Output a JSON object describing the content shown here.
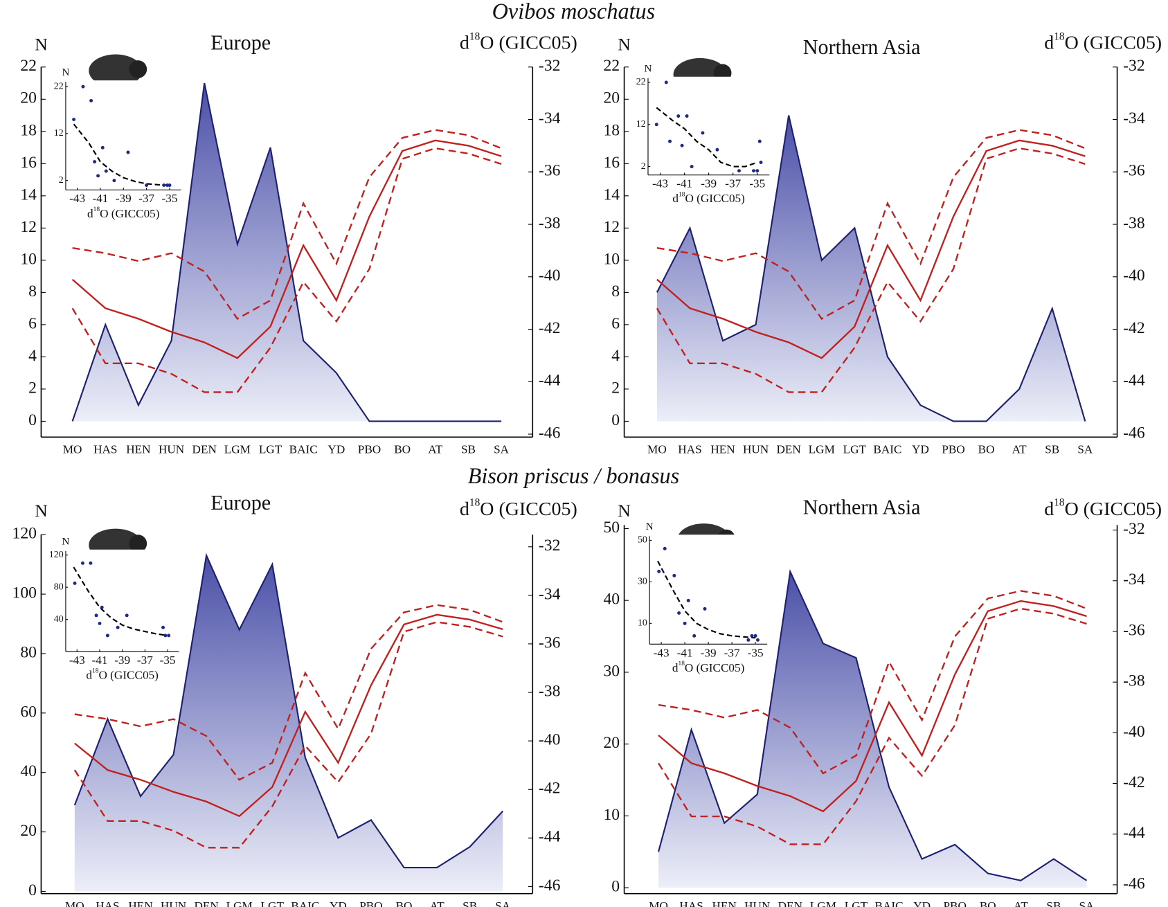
{
  "headings": [
    "Ovibos moschatus",
    "Bison priscus / bonasus"
  ],
  "chart_data": [
    {
      "type": "area-line",
      "title": "Europe",
      "y_label": "N",
      "y2_label": {
        "base": "d",
        "sup": "18",
        "rest": "O (GICC05)"
      },
      "categories": [
        "MO",
        "HAS",
        "HEN",
        "HUN",
        "DEN",
        "LGM",
        "LGT",
        "BAIC",
        "YD",
        "PBO",
        "BO",
        "AT",
        "SB",
        "SA"
      ],
      "ylim": [
        -0.8,
        22
      ],
      "yticks": [
        0,
        2,
        4,
        6,
        8,
        10,
        12,
        14,
        16,
        18,
        20,
        22
      ],
      "y2lim": [
        -46,
        -32
      ],
      "y2ticks": [
        -46,
        -44,
        -42,
        -40,
        -38,
        -36,
        -34,
        -32
      ],
      "series": [
        {
          "style": "area",
          "color": "#1e2070",
          "values": [
            0,
            6,
            1,
            5,
            21,
            11,
            17,
            5,
            3,
            0,
            0,
            0,
            0,
            0
          ]
        },
        {
          "style": "dashed",
          "axis": "y2",
          "color": "#c0201e",
          "values": [
            -38.9,
            -39.1,
            -39.4,
            -39.1,
            -39.8,
            -41.6,
            -40.9,
            -37.2,
            -39.5,
            -36.2,
            -34.7,
            -34.4,
            -34.6,
            -35.1
          ]
        },
        {
          "style": "solid",
          "axis": "y2",
          "color": "#c0201e",
          "values": [
            -40.1,
            -41.2,
            -41.6,
            -42.1,
            -42.5,
            -43.1,
            -41.9,
            -38.8,
            -40.9,
            -37.7,
            -35.2,
            -34.8,
            -35.0,
            -35.4
          ]
        },
        {
          "style": "dashed",
          "axis": "y2",
          "color": "#c0201e",
          "values": [
            -41.2,
            -43.3,
            -43.3,
            -43.7,
            -44.4,
            -44.4,
            -42.7,
            -40.2,
            -41.7,
            -39.7,
            -35.5,
            -35.1,
            -35.3,
            -35.7
          ]
        }
      ],
      "inset": {
        "type": "scatter",
        "y_label": "N",
        "x_label": {
          "base": "d",
          "sup": "18",
          "rest": "O (GICC05)"
        },
        "color": "#1e2a80",
        "xlim": [
          -44,
          -34
        ],
        "xticks": [
          -43,
          -41,
          -39,
          -37,
          -35
        ],
        "ylim": [
          0,
          23
        ],
        "yticks": [
          2,
          12,
          22
        ],
        "points": {
          "x": [
            -43.3,
            -42.5,
            -41.8,
            -41.5,
            -41.2,
            -40.8,
            -40.5,
            -39.8,
            -38.6,
            -37,
            -35.5,
            -35.2,
            -35
          ],
          "y": [
            15,
            22,
            19,
            6,
            3,
            9,
            4,
            2,
            8,
            1,
            1,
            1,
            1
          ]
        },
        "fit": {
          "color": "#000",
          "x": [
            -43.3,
            -42,
            -41,
            -40,
            -39,
            -38,
            -37,
            -36,
            -35
          ],
          "y": [
            14,
            10,
            6,
            4,
            2.6,
            1.8,
            1.3,
            1.1,
            1
          ]
        }
      }
    },
    {
      "type": "area-line",
      "title": "Northern Asia",
      "y_label": "N",
      "y2_label": {
        "base": "d",
        "sup": "18",
        "rest": "O (GICC05)"
      },
      "categories": [
        "MO",
        "HAS",
        "HEN",
        "HUN",
        "DEN",
        "LGM",
        "LGT",
        "BAIC",
        "YD",
        "PBO",
        "BO",
        "AT",
        "SB",
        "SA"
      ],
      "ylim": [
        -0.8,
        22
      ],
      "yticks": [
        0,
        2,
        4,
        6,
        8,
        10,
        12,
        14,
        16,
        18,
        20,
        22
      ],
      "y2lim": [
        -46,
        -32
      ],
      "y2ticks": [
        -46,
        -44,
        -42,
        -40,
        -38,
        -36,
        -34,
        -32
      ],
      "series": [
        {
          "style": "area",
          "color": "#1e2070",
          "values": [
            8,
            12,
            5,
            6,
            19,
            10,
            12,
            4,
            1,
            0,
            0,
            2,
            7,
            0
          ]
        },
        {
          "style": "dashed",
          "axis": "y2",
          "color": "#c0201e",
          "values": [
            -38.9,
            -39.1,
            -39.4,
            -39.1,
            -39.8,
            -41.6,
            -40.9,
            -37.2,
            -39.5,
            -36.2,
            -34.7,
            -34.4,
            -34.6,
            -35.1
          ]
        },
        {
          "style": "solid",
          "axis": "y2",
          "color": "#c0201e",
          "values": [
            -40.1,
            -41.2,
            -41.6,
            -42.1,
            -42.5,
            -43.1,
            -41.9,
            -38.8,
            -40.9,
            -37.7,
            -35.2,
            -34.8,
            -35.0,
            -35.4
          ]
        },
        {
          "style": "dashed",
          "axis": "y2",
          "color": "#c0201e",
          "values": [
            -41.2,
            -43.3,
            -43.3,
            -43.7,
            -44.4,
            -44.4,
            -42.7,
            -40.2,
            -41.7,
            -39.7,
            -35.5,
            -35.1,
            -35.3,
            -35.7
          ]
        }
      ],
      "inset": {
        "type": "scatter",
        "y_label": "N",
        "x_label": {
          "base": "d",
          "sup": "18",
          "rest": "O (GICC05)"
        },
        "color": "#1e2a80",
        "xlim": [
          -44,
          -34
        ],
        "xticks": [
          -43,
          -41,
          -39,
          -37,
          -35
        ],
        "ylim": [
          0,
          23
        ],
        "yticks": [
          2,
          12,
          22
        ],
        "points": {
          "x": [
            -43.3,
            -42.5,
            -42.2,
            -41.5,
            -41.2,
            -40.8,
            -40.4,
            -39.5,
            -38.3,
            -36.5,
            -35.3,
            -35,
            -34.8,
            -34.7
          ],
          "y": [
            12,
            22,
            8,
            14,
            7,
            14,
            2,
            10,
            6,
            1,
            1,
            1,
            8,
            3
          ]
        },
        "fit": {
          "color": "#000",
          "x": [
            -43.3,
            -42,
            -41,
            -40,
            -39,
            -38,
            -37,
            -36,
            -35
          ],
          "y": [
            16,
            13,
            11,
            8,
            6,
            3,
            2,
            2,
            3
          ]
        }
      }
    },
    {
      "type": "area-line",
      "title": "Europe",
      "y_label": "N",
      "y2_label": {
        "base": "d",
        "sup": "18",
        "rest": "O (GICC05)"
      },
      "categories": [
        "MO",
        "HAS",
        "HEN",
        "HUN",
        "DEN",
        "LGM",
        "LGT",
        "BAIC",
        "YD",
        "PBO",
        "BO",
        "AT",
        "SB",
        "SA"
      ],
      "ylim": [
        0,
        120
      ],
      "yticks": [
        0,
        20,
        40,
        60,
        80,
        100,
        120
      ],
      "y2lim": [
        -46.2,
        -31.5
      ],
      "y2ticks": [
        -46,
        -44,
        -42,
        -40,
        -38,
        -36,
        -34,
        -32
      ],
      "series": [
        {
          "style": "area",
          "color": "#1e2070",
          "values": [
            29,
            58,
            32,
            46,
            113,
            88,
            110,
            45,
            18,
            24,
            8,
            8,
            15,
            27
          ]
        },
        {
          "style": "dashed",
          "axis": "y2",
          "color": "#c0201e",
          "values": [
            -38.9,
            -39.1,
            -39.4,
            -39.1,
            -39.8,
            -41.6,
            -40.9,
            -37.2,
            -39.5,
            -36.2,
            -34.7,
            -34.4,
            -34.6,
            -35.1
          ]
        },
        {
          "style": "solid",
          "axis": "y2",
          "color": "#c0201e",
          "values": [
            -40.1,
            -41.2,
            -41.6,
            -42.1,
            -42.5,
            -43.1,
            -41.9,
            -38.8,
            -40.9,
            -37.7,
            -35.2,
            -34.8,
            -35.0,
            -35.4
          ]
        },
        {
          "style": "dashed",
          "axis": "y2",
          "color": "#c0201e",
          "values": [
            -41.2,
            -43.3,
            -43.3,
            -43.7,
            -44.4,
            -44.4,
            -42.7,
            -40.2,
            -41.7,
            -39.7,
            -35.5,
            -35.1,
            -35.3,
            -35.7
          ]
        }
      ],
      "inset": {
        "type": "scatter",
        "y_label": "N",
        "x_label": {
          "base": "d",
          "sup": "18",
          "rest": "O (GICC05)"
        },
        "color": "#1e2a80",
        "xlim": [
          -44,
          -34
        ],
        "xticks": [
          -43,
          -41,
          -39,
          -37,
          -35
        ],
        "ylim": [
          0,
          125
        ],
        "yticks": [
          40,
          80,
          120
        ],
        "points": {
          "x": [
            -43.2,
            -42.5,
            -41.8,
            -41.3,
            -41,
            -40.8,
            -40.3,
            -39.4,
            -38.6,
            -35.4,
            -35.2,
            -34.9
          ],
          "y": [
            85,
            110,
            110,
            45,
            35,
            55,
            20,
            30,
            45,
            30,
            20,
            20
          ]
        },
        "fit": {
          "color": "#000",
          "x": [
            -43.3,
            -42,
            -41,
            -40,
            -39,
            -38,
            -37,
            -36,
            -35
          ],
          "y": [
            105,
            75,
            55,
            42,
            33,
            28,
            25,
            22,
            20
          ]
        }
      }
    },
    {
      "type": "area-line",
      "title": "Northern Asia",
      "y_label": "N",
      "y2_label": {
        "base": "d",
        "sup": "18",
        "rest": "O (GICC05)"
      },
      "categories": [
        "MO",
        "HAS",
        "HEN",
        "HUN",
        "DEN",
        "LGM",
        "LGT",
        "BAIC",
        "YD",
        "PBO",
        "BO",
        "AT",
        "SB",
        "SA"
      ],
      "ylim": [
        -0.3,
        50.5
      ],
      "yticks": [
        0,
        10,
        20,
        30,
        40,
        50
      ],
      "y2lim": [
        -46.2,
        -31.8
      ],
      "y2ticks": [
        -46,
        -44,
        -42,
        -40,
        -38,
        -36,
        -34,
        -32
      ],
      "series": [
        {
          "style": "area",
          "color": "#1e2070",
          "values": [
            5,
            22,
            9,
            13,
            44,
            34,
            32,
            14,
            4,
            6,
            2,
            1,
            4,
            1
          ]
        },
        {
          "style": "dashed",
          "axis": "y2",
          "color": "#c0201e",
          "values": [
            -38.9,
            -39.1,
            -39.4,
            -39.1,
            -39.8,
            -41.6,
            -40.9,
            -37.2,
            -39.5,
            -36.2,
            -34.7,
            -34.4,
            -34.6,
            -35.1
          ]
        },
        {
          "style": "solid",
          "axis": "y2",
          "color": "#c0201e",
          "values": [
            -40.1,
            -41.2,
            -41.6,
            -42.1,
            -42.5,
            -43.1,
            -41.9,
            -38.8,
            -40.9,
            -37.7,
            -35.2,
            -34.8,
            -35.0,
            -35.4
          ]
        },
        {
          "style": "dashed",
          "axis": "y2",
          "color": "#c0201e",
          "values": [
            -41.2,
            -43.3,
            -43.3,
            -43.7,
            -44.4,
            -44.4,
            -42.7,
            -40.2,
            -41.7,
            -39.7,
            -35.5,
            -35.1,
            -35.3,
            -35.7
          ]
        }
      ],
      "inset": {
        "type": "scatter",
        "y_label": "N",
        "x_label": {
          "base": "d",
          "sup": "18",
          "rest": "O (GICC05)"
        },
        "color": "#1e2a80",
        "xlim": [
          -44,
          -34
        ],
        "xticks": [
          -43,
          -41,
          -39,
          -37,
          -35
        ],
        "ylim": [
          0,
          52
        ],
        "yticks": [
          10,
          30,
          50
        ],
        "points": {
          "x": [
            -43.2,
            -42.7,
            -41.9,
            -41.5,
            -41,
            -40.7,
            -40.2,
            -39.3,
            -35.6,
            -35.3,
            -35,
            -34.8
          ],
          "y": [
            35,
            46,
            33,
            15,
            10,
            21,
            4,
            17,
            2,
            4,
            4,
            2
          ]
        },
        "fit": {
          "color": "#000",
          "x": [
            -43.3,
            -42,
            -41,
            -40,
            -39,
            -38,
            -37,
            -36,
            -35
          ],
          "y": [
            40,
            26,
            16,
            10,
            7,
            5,
            4,
            3.5,
            3
          ]
        }
      }
    }
  ]
}
